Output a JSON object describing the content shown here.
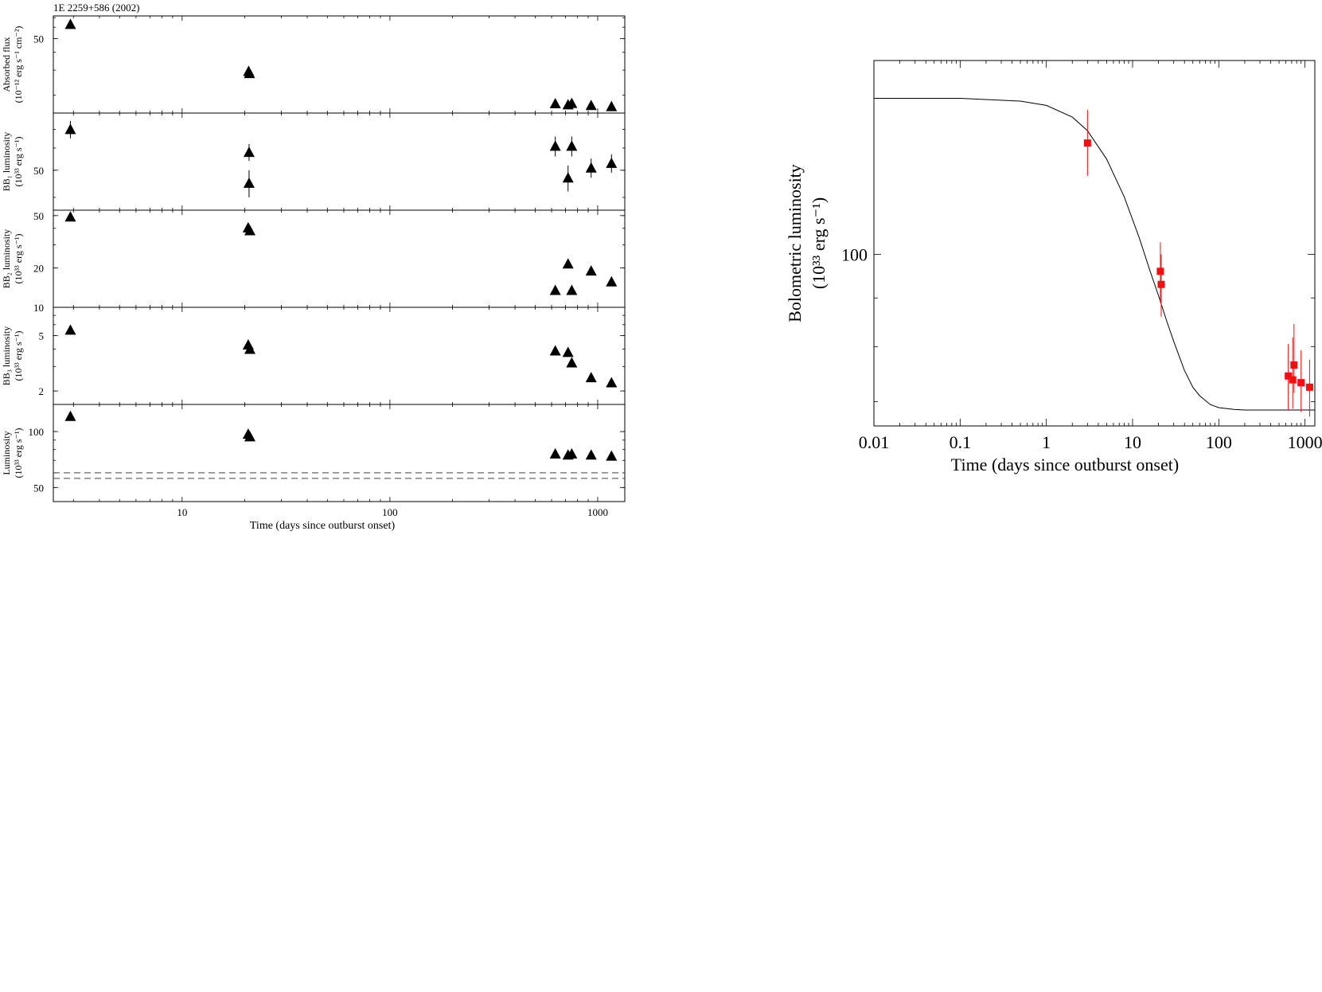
{
  "chart_data": [
    {
      "type": "scatter",
      "title": "1E 2259+586 (2002)",
      "xlabel": "Time (days since outburst onset)",
      "xscale": "log",
      "xlim": [
        2.4,
        1350
      ],
      "xticks": [
        "10",
        "100",
        "1000"
      ],
      "panels": [
        {
          "ylabel_lines": [
            "Absorbed flux",
            "(10⁻¹² erg s⁻¹ cm⁻²)"
          ],
          "yscale": "log",
          "ylim": [
            15,
            72
          ],
          "yticks": [
            "50"
          ],
          "series": [
            {
              "marker": "triangle",
              "x": [
                2.9,
                20.9,
                21.1,
                625,
                720,
                750,
                930,
                1165
              ],
              "y": [
                63,
                29.5,
                28.5,
                17.5,
                17.2,
                17.6,
                17.0,
                16.7
              ],
              "err": [
                0,
                0,
                0,
                0,
                0,
                0,
                0,
                0
              ]
            }
          ]
        },
        {
          "ylabel_lines": [
            "BB₁ luminosity",
            "(10³³ erg s⁻¹)"
          ],
          "yscale": "log",
          "ylim": [
            36,
            80
          ],
          "yticks": [
            "50"
          ],
          "series": [
            {
              "marker": "triangle",
              "x": [
                2.9,
                21,
                21,
                625,
                720,
                750,
                930,
                1165
              ],
              "y": [
                70,
                58,
                45,
                61,
                47,
                61,
                51,
                53
              ],
              "err": [
                5,
                4,
                5,
                5,
                5,
                5,
                4,
                4
              ]
            }
          ]
        },
        {
          "ylabel_lines": [
            "BB₂ luminosity",
            "(10³³ erg s⁻¹)"
          ],
          "yscale": "log",
          "ylim": [
            10,
            55
          ],
          "yticks": [
            "50",
            "20",
            "10"
          ],
          "series": [
            {
              "marker": "triangle",
              "x": [
                2.9,
                20.8,
                21.2,
                625,
                720,
                750,
                930,
                1165
              ],
              "y": [
                49,
                40.5,
                38.5,
                13.5,
                21.5,
                13.5,
                19,
                15.7
              ],
              "err": [
                0,
                0,
                0,
                0,
                0,
                0,
                0,
                0
              ]
            }
          ]
        },
        {
          "ylabel_lines": [
            "BB₃ luminosity",
            "(10³³ erg s⁻¹)"
          ],
          "yscale": "log",
          "ylim": [
            1.6,
            8
          ],
          "yticks": [
            "5",
            "2"
          ],
          "series": [
            {
              "marker": "triangle",
              "x": [
                2.9,
                20.8,
                21.2,
                625,
                720,
                750,
                930,
                1165
              ],
              "y": [
                5.5,
                4.3,
                4.0,
                3.9,
                3.8,
                3.2,
                2.5,
                2.3
              ],
              "err": [
                0,
                0,
                0,
                0,
                0,
                0,
                0,
                0
              ]
            }
          ]
        },
        {
          "ylabel_lines": [
            "Luminosity",
            "(10³³ erg s⁻¹)"
          ],
          "yscale": "log",
          "ylim": [
            42,
            140
          ],
          "yticks": [
            "100",
            "50"
          ],
          "hlines": [
            60,
            56
          ],
          "series": [
            {
              "marker": "triangle",
              "x": [
                2.9,
                20.8,
                21.2,
                625,
                720,
                750,
                930,
                1165
              ],
              "y": [
                121,
                97,
                94,
                76,
                75,
                76,
                75,
                74
              ],
              "err": [
                0,
                0,
                0,
                0,
                0,
                0,
                0,
                0
              ]
            }
          ]
        }
      ]
    },
    {
      "type": "scatter",
      "xlabel": "Time (days since outburst onset)",
      "ylabel_lines": [
        "Bolometric luminosity",
        "(10³³ erg s⁻¹)"
      ],
      "xscale": "log",
      "xlim": [
        0.01,
        1300
      ],
      "xticks": [
        "0.01",
        "0.1",
        "1",
        "10",
        "100",
        "1000"
      ],
      "yscale": "log",
      "ylim": [
        66,
        160
      ],
      "yticks": [
        "100"
      ],
      "series": [
        {
          "marker": "square",
          "color": "#ee1111",
          "x": [
            3,
            21,
            21.5,
            640,
            720,
            745,
            900,
            1130
          ],
          "y": [
            131,
            96,
            93,
            74.5,
            73.8,
            76.5,
            73.3,
            72.5
          ],
          "err_lo": [
            10,
            7,
            7,
            6,
            5,
            5,
            5,
            5
          ],
          "err_hi": [
            11,
            7,
            7,
            6,
            8,
            8,
            6,
            5
          ]
        }
      ],
      "model_curve": {
        "color": "#000000",
        "x": [
          0.01,
          0.1,
          0.5,
          1,
          2,
          3,
          5,
          8,
          12,
          16,
          20,
          25,
          30,
          40,
          50,
          60,
          80,
          100,
          150,
          200,
          300,
          500,
          1000,
          1300
        ],
        "y": [
          146,
          146,
          145,
          143.5,
          139.5,
          135,
          126,
          115,
          104,
          96,
          90.5,
          85,
          81,
          75.5,
          72.5,
          71,
          69.5,
          69,
          68.7,
          68.6,
          68.6,
          68.6,
          68.6,
          68.6
        ]
      }
    }
  ]
}
